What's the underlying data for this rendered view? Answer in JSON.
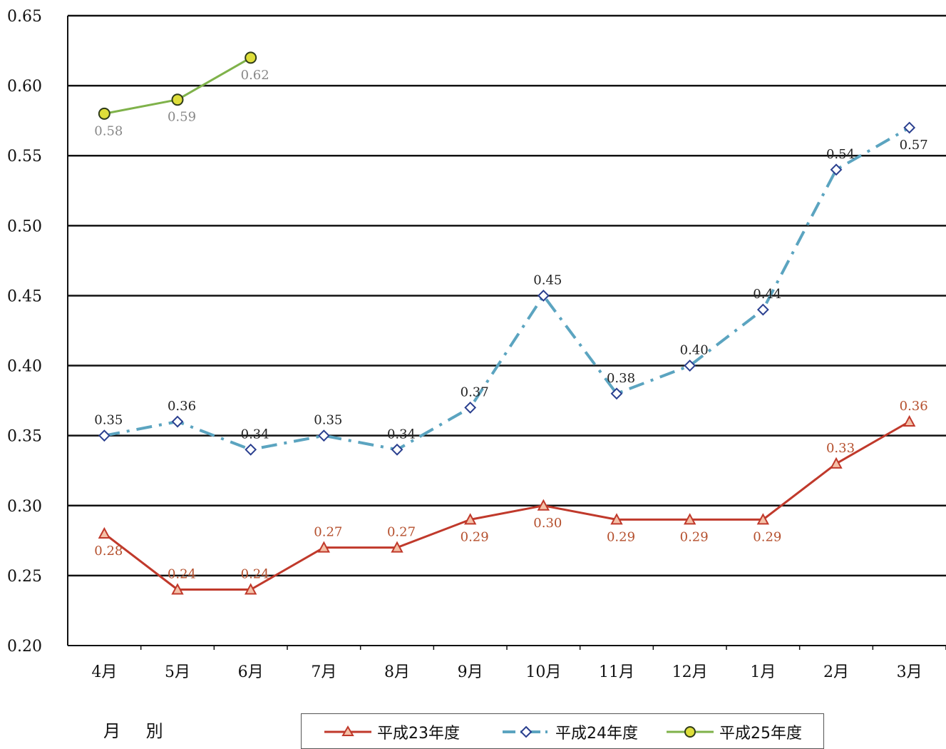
{
  "chart_data": {
    "type": "line",
    "categories": [
      "4月",
      "5月",
      "6月",
      "7月",
      "8月",
      "9月",
      "10月",
      "11月",
      "12月",
      "1月",
      "2月",
      "3月"
    ],
    "ylim": [
      0.2,
      0.65
    ],
    "yticks": [
      "0.20",
      "0.25",
      "0.30",
      "0.35",
      "0.40",
      "0.45",
      "0.50",
      "0.55",
      "0.60",
      "0.65"
    ],
    "xlabel": "月 別",
    "grid": true,
    "legend_position": "bottom",
    "series": [
      {
        "name": "平成23年度",
        "color": "#c0392b",
        "marker": "triangle",
        "values": [
          0.28,
          0.24,
          0.24,
          0.27,
          0.27,
          0.29,
          0.3,
          0.29,
          0.29,
          0.29,
          0.33,
          0.36
        ],
        "labels": [
          "0.28",
          "0.24",
          "0.24",
          "0.27",
          "0.27",
          "0.29",
          "0.30",
          "0.29",
          "0.29",
          "0.29",
          "0.33",
          "0.36"
        ]
      },
      {
        "name": "平成24年度",
        "color": "#5ba4c0",
        "marker": "diamond",
        "values": [
          0.35,
          0.36,
          0.34,
          0.35,
          0.34,
          0.37,
          0.45,
          0.38,
          0.4,
          0.44,
          0.54,
          0.57
        ],
        "labels": [
          "0.35",
          "0.36",
          "0.34",
          "0.35",
          "0.34",
          "0.37",
          "0.45",
          "0.38",
          "0.40",
          "0.44",
          "0.54",
          "0.57"
        ]
      },
      {
        "name": "平成25年度",
        "color": "#7fb24a",
        "marker": "circle",
        "values": [
          0.58,
          0.59,
          0.62,
          null,
          null,
          null,
          null,
          null,
          null,
          null,
          null,
          null
        ],
        "labels": [
          "0.58",
          "0.59",
          "0.62",
          null,
          null,
          null,
          null,
          null,
          null,
          null,
          null,
          null
        ]
      }
    ]
  }
}
